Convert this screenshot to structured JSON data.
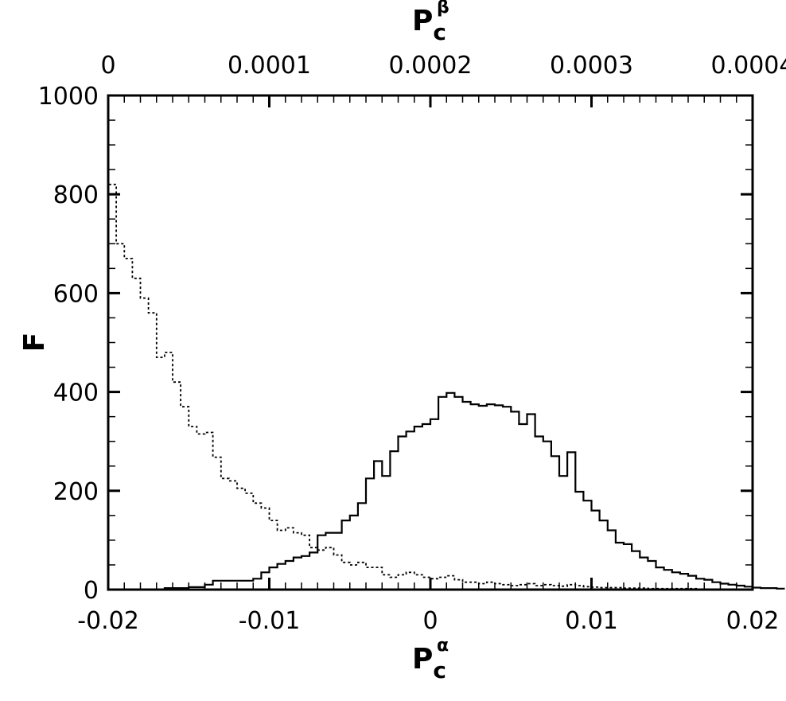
{
  "chart_data": {
    "type": "histogram",
    "xlabel": {
      "main": "P",
      "sub": "c",
      "sup": "α"
    },
    "x2label": {
      "main": "P",
      "sub": "c",
      "sup": "β"
    },
    "ylabel": "F",
    "xlim": [
      -0.02,
      0.02
    ],
    "x2lim": [
      0,
      0.0004
    ],
    "ylim": [
      0,
      1000
    ],
    "xticks": [
      "-0.02",
      "-0.01",
      "0",
      "0.01",
      "0.02"
    ],
    "x2ticks": [
      "0",
      "0.0001",
      "0.0002",
      "0.0003",
      "0.0004"
    ],
    "yticks": [
      "0",
      "200",
      "400",
      "600",
      "800",
      "1000"
    ],
    "grid": false,
    "series": [
      {
        "axis": "bottom",
        "style": "solid",
        "x_start": -0.0165,
        "bin_width": 0.0005,
        "values": [
          3,
          3,
          3,
          5,
          5,
          10,
          18,
          18,
          18,
          18,
          18,
          22,
          35,
          45,
          52,
          58,
          65,
          68,
          75,
          110,
          115,
          115,
          140,
          150,
          175,
          225,
          260,
          230,
          280,
          310,
          320,
          330,
          335,
          345,
          390,
          398,
          390,
          380,
          375,
          372,
          375,
          373,
          370,
          360,
          335,
          355,
          310,
          300,
          270,
          230,
          278,
          198,
          180,
          160,
          140,
          120,
          95,
          92,
          78,
          65,
          58,
          45,
          40,
          35,
          32,
          28,
          22,
          20,
          15,
          12,
          10,
          8,
          6,
          4,
          3,
          3,
          2
        ]
      },
      {
        "axis": "top",
        "style": "dotted",
        "x_start": 0,
        "bin_width": 5e-06,
        "values": [
          820,
          700,
          670,
          630,
          590,
          560,
          470,
          480,
          420,
          370,
          330,
          315,
          318,
          268,
          225,
          220,
          205,
          195,
          175,
          165,
          140,
          120,
          125,
          115,
          110,
          85,
          80,
          85,
          70,
          55,
          50,
          55,
          45,
          45,
          30,
          25,
          30,
          35,
          30,
          25,
          22,
          25,
          28,
          20,
          15,
          15,
          12,
          15,
          12,
          10,
          8,
          10,
          12,
          8,
          10,
          8,
          7,
          10,
          8,
          6,
          5,
          4,
          4,
          4,
          3,
          3,
          3,
          2,
          2,
          2,
          2,
          2,
          2,
          1,
          1,
          1,
          1,
          1,
          1,
          1
        ]
      }
    ]
  }
}
